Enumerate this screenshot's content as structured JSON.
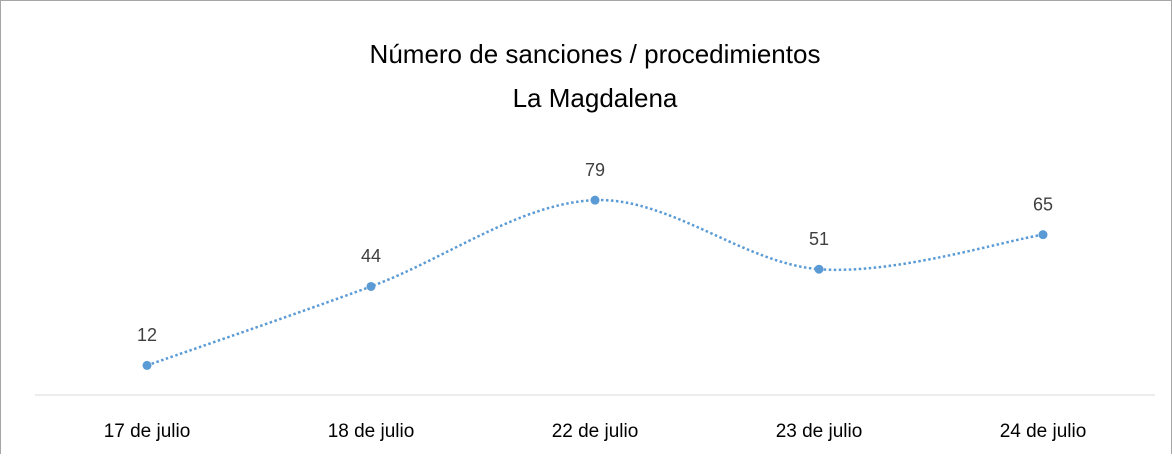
{
  "chart_data": {
    "type": "line",
    "title": "Número de sanciones / procedimientos",
    "subtitle": "La Magdalena",
    "categories": [
      "17 de julio",
      "18 de julio",
      "22 de julio",
      "23 de julio",
      "24 de julio"
    ],
    "series": [
      {
        "color": "#5b9bd5",
        "values": [
          12,
          44,
          79,
          51,
          65
        ]
      }
    ],
    "ylim": [
      0,
      90
    ],
    "smooth": true,
    "line_style": "dotted",
    "data_labels": true
  }
}
